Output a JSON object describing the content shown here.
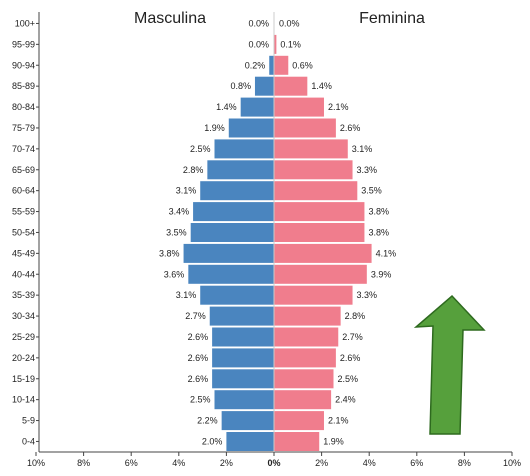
{
  "chart_data": {
    "type": "bar",
    "orientation": "horizontal",
    "left_title": "Masculina",
    "right_title": "Feminina",
    "categories": [
      "100+",
      "95-99",
      "90-94",
      "85-89",
      "80-84",
      "75-79",
      "70-74",
      "65-69",
      "60-64",
      "55-59",
      "50-54",
      "45-49",
      "40-44",
      "35-39",
      "30-34",
      "25-29",
      "20-24",
      "15-19",
      "10-14",
      "5-9",
      "0-4"
    ],
    "series": [
      {
        "name": "Masculina",
        "color": "#4a85bf",
        "values": [
          0.0,
          0.0,
          0.2,
          0.8,
          1.4,
          1.9,
          2.5,
          2.8,
          3.1,
          3.4,
          3.5,
          3.8,
          3.6,
          3.1,
          2.7,
          2.6,
          2.6,
          2.6,
          2.5,
          2.2,
          2.0
        ],
        "labels": [
          "0.0%",
          "0.0%",
          "0.2%",
          "0.8%",
          "1.4%",
          "1.9%",
          "2.5%",
          "2.8%",
          "3.1%",
          "3.4%",
          "3.5%",
          "3.8%",
          "3.6%",
          "3.1%",
          "2.7%",
          "2.6%",
          "2.6%",
          "2.6%",
          "2.5%",
          "2.2%",
          "2.0%"
        ]
      },
      {
        "name": "Feminina",
        "color": "#f07d8d",
        "values": [
          0.0,
          0.1,
          0.6,
          1.4,
          2.1,
          2.6,
          3.1,
          3.3,
          3.5,
          3.8,
          3.8,
          4.1,
          3.9,
          3.3,
          2.8,
          2.7,
          2.6,
          2.5,
          2.4,
          2.1,
          1.9
        ],
        "labels": [
          "0.0%",
          "0.1%",
          "0.6%",
          "1.4%",
          "2.1%",
          "2.6%",
          "3.1%",
          "3.3%",
          "3.5%",
          "3.8%",
          "3.8%",
          "4.1%",
          "3.9%",
          "3.3%",
          "2.8%",
          "2.7%",
          "2.6%",
          "2.5%",
          "2.4%",
          "2.1%",
          "1.9%"
        ]
      }
    ],
    "x_ticks": [
      "10%",
      "8%",
      "6%",
      "4%",
      "2%",
      "0%",
      "2%",
      "4%",
      "6%",
      "8%",
      "10%"
    ],
    "x_tick_values": [
      -10,
      -8,
      -6,
      -4,
      -2,
      0,
      2,
      4,
      6,
      8,
      10
    ],
    "xlim": [
      -10,
      10
    ],
    "annotation": {
      "shape": "arrow-up",
      "color": "#56a03c",
      "stroke": "#2e6a1f"
    }
  }
}
